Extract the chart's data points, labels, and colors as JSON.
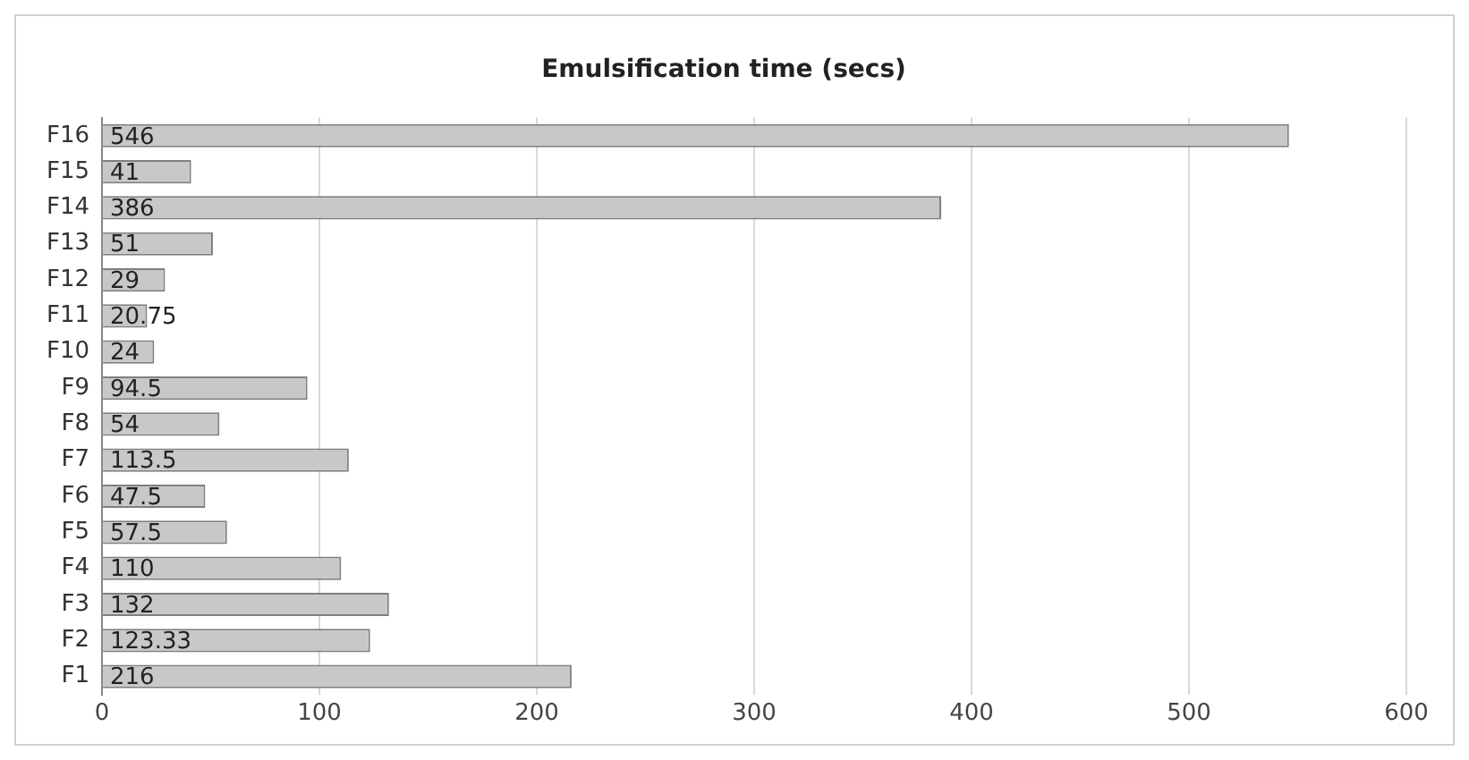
{
  "chart_data": {
    "type": "bar",
    "orientation": "horizontal",
    "title": "Emulsification time (secs)",
    "categories": [
      "F16",
      "F15",
      "F14",
      "F13",
      "F12",
      "F11",
      "F10",
      "F9",
      "F8",
      "F7",
      "F6",
      "F5",
      "F4",
      "F3",
      "F2",
      "F1"
    ],
    "values": [
      546,
      41,
      386,
      51,
      29,
      20.75,
      24,
      94.5,
      54,
      113.5,
      47.5,
      57.5,
      110,
      132,
      123.33,
      216
    ],
    "color": "#c8c8c8",
    "xlim": [
      0,
      600
    ],
    "xticks": [
      0,
      100,
      200,
      300,
      400,
      500,
      600
    ],
    "grid": "x",
    "legend": false,
    "data_labels": true
  }
}
